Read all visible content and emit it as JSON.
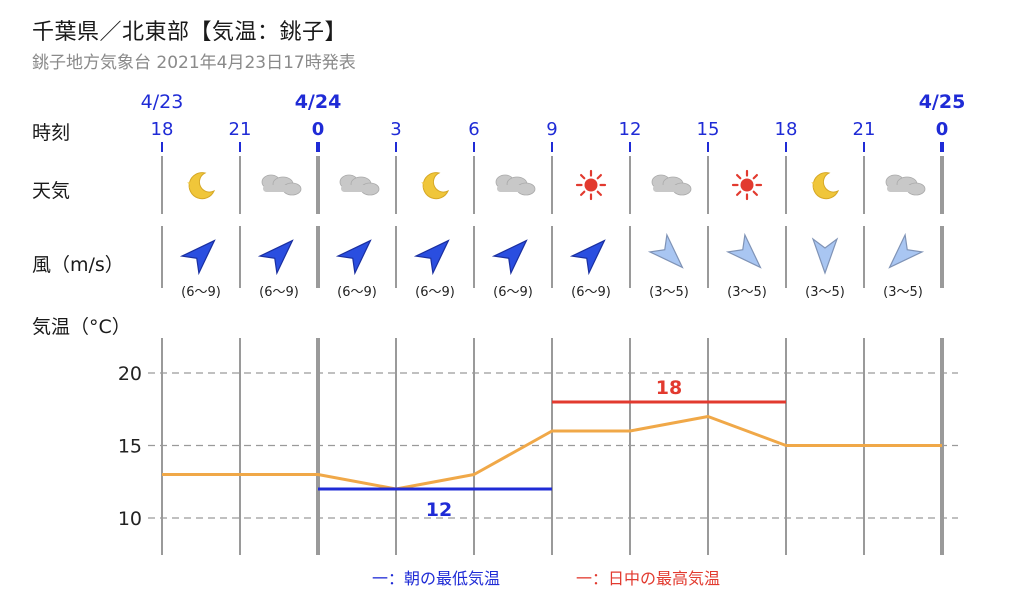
{
  "header": {
    "title": "千葉県／北東部【気温：銚子】",
    "subtitle": "銚子地方気象台 2021年4月23日17時発表"
  },
  "labels": {
    "time": "時刻",
    "weather": "天気",
    "wind": "風（m/s）",
    "temp": "気温（°C）"
  },
  "dates": [
    {
      "col": 0,
      "label": "4/23",
      "bold": false
    },
    {
      "col": 2,
      "label": "4/24",
      "bold": true
    },
    {
      "col": 10,
      "label": "4/25",
      "bold": true
    }
  ],
  "hours": [
    "18",
    "21",
    "0",
    "3",
    "6",
    "9",
    "12",
    "15",
    "18",
    "21",
    "0"
  ],
  "bold_hours": [
    2,
    10
  ],
  "weather": [
    "moon-icon",
    "cloud-icon",
    "cloud-icon",
    "moon-icon",
    "cloud-icon",
    "sun-icon",
    "cloud-icon",
    "sun-icon",
    "moon-icon",
    "cloud-icon"
  ],
  "wind": [
    {
      "dir": "SW",
      "speed": "(6〜9)",
      "strong": true
    },
    {
      "dir": "SW",
      "speed": "(6〜9)",
      "strong": true
    },
    {
      "dir": "SW",
      "speed": "(6〜9)",
      "strong": true
    },
    {
      "dir": "SW",
      "speed": "(6〜9)",
      "strong": true
    },
    {
      "dir": "SW",
      "speed": "(6〜9)",
      "strong": true
    },
    {
      "dir": "SW",
      "speed": "(6〜9)",
      "strong": true
    },
    {
      "dir": "NW",
      "speed": "(3〜5)",
      "strong": false
    },
    {
      "dir": "NW",
      "speed": "(3〜5)",
      "strong": false
    },
    {
      "dir": "N",
      "speed": "(3〜5)",
      "strong": false
    },
    {
      "dir": "NE",
      "speed": "(3〜5)",
      "strong": false
    }
  ],
  "colors": {
    "line": "#f0a848",
    "min": "#1f2bd6",
    "max": "#e23a2f",
    "date": "#1f2bd6",
    "wind_strong": "#2a4ee0",
    "wind_weak": "#a9c6f2",
    "sun": "#e23a2f",
    "moon": "#f0c63a",
    "cloud": "#c8c8c8"
  },
  "legend": {
    "min_label": "一：朝の最低気温",
    "max_label": "一：日中の最高気温"
  },
  "chart_data": {
    "type": "line",
    "x": [
      "18",
      "21",
      "0",
      "3",
      "6",
      "9",
      "12",
      "15",
      "18",
      "21",
      "0"
    ],
    "series": [
      {
        "values": [
          13,
          13,
          13,
          12,
          13,
          16,
          16,
          17,
          15,
          15,
          15
        ]
      }
    ],
    "min_temp": {
      "value": 12,
      "label": "12",
      "from": "0",
      "to": "9"
    },
    "max_temp": {
      "value": 18,
      "label": "18",
      "from": "9",
      "to": "18"
    },
    "yticks": [
      10,
      15,
      20
    ],
    "ylim": [
      8,
      22.5
    ],
    "grid": true
  }
}
